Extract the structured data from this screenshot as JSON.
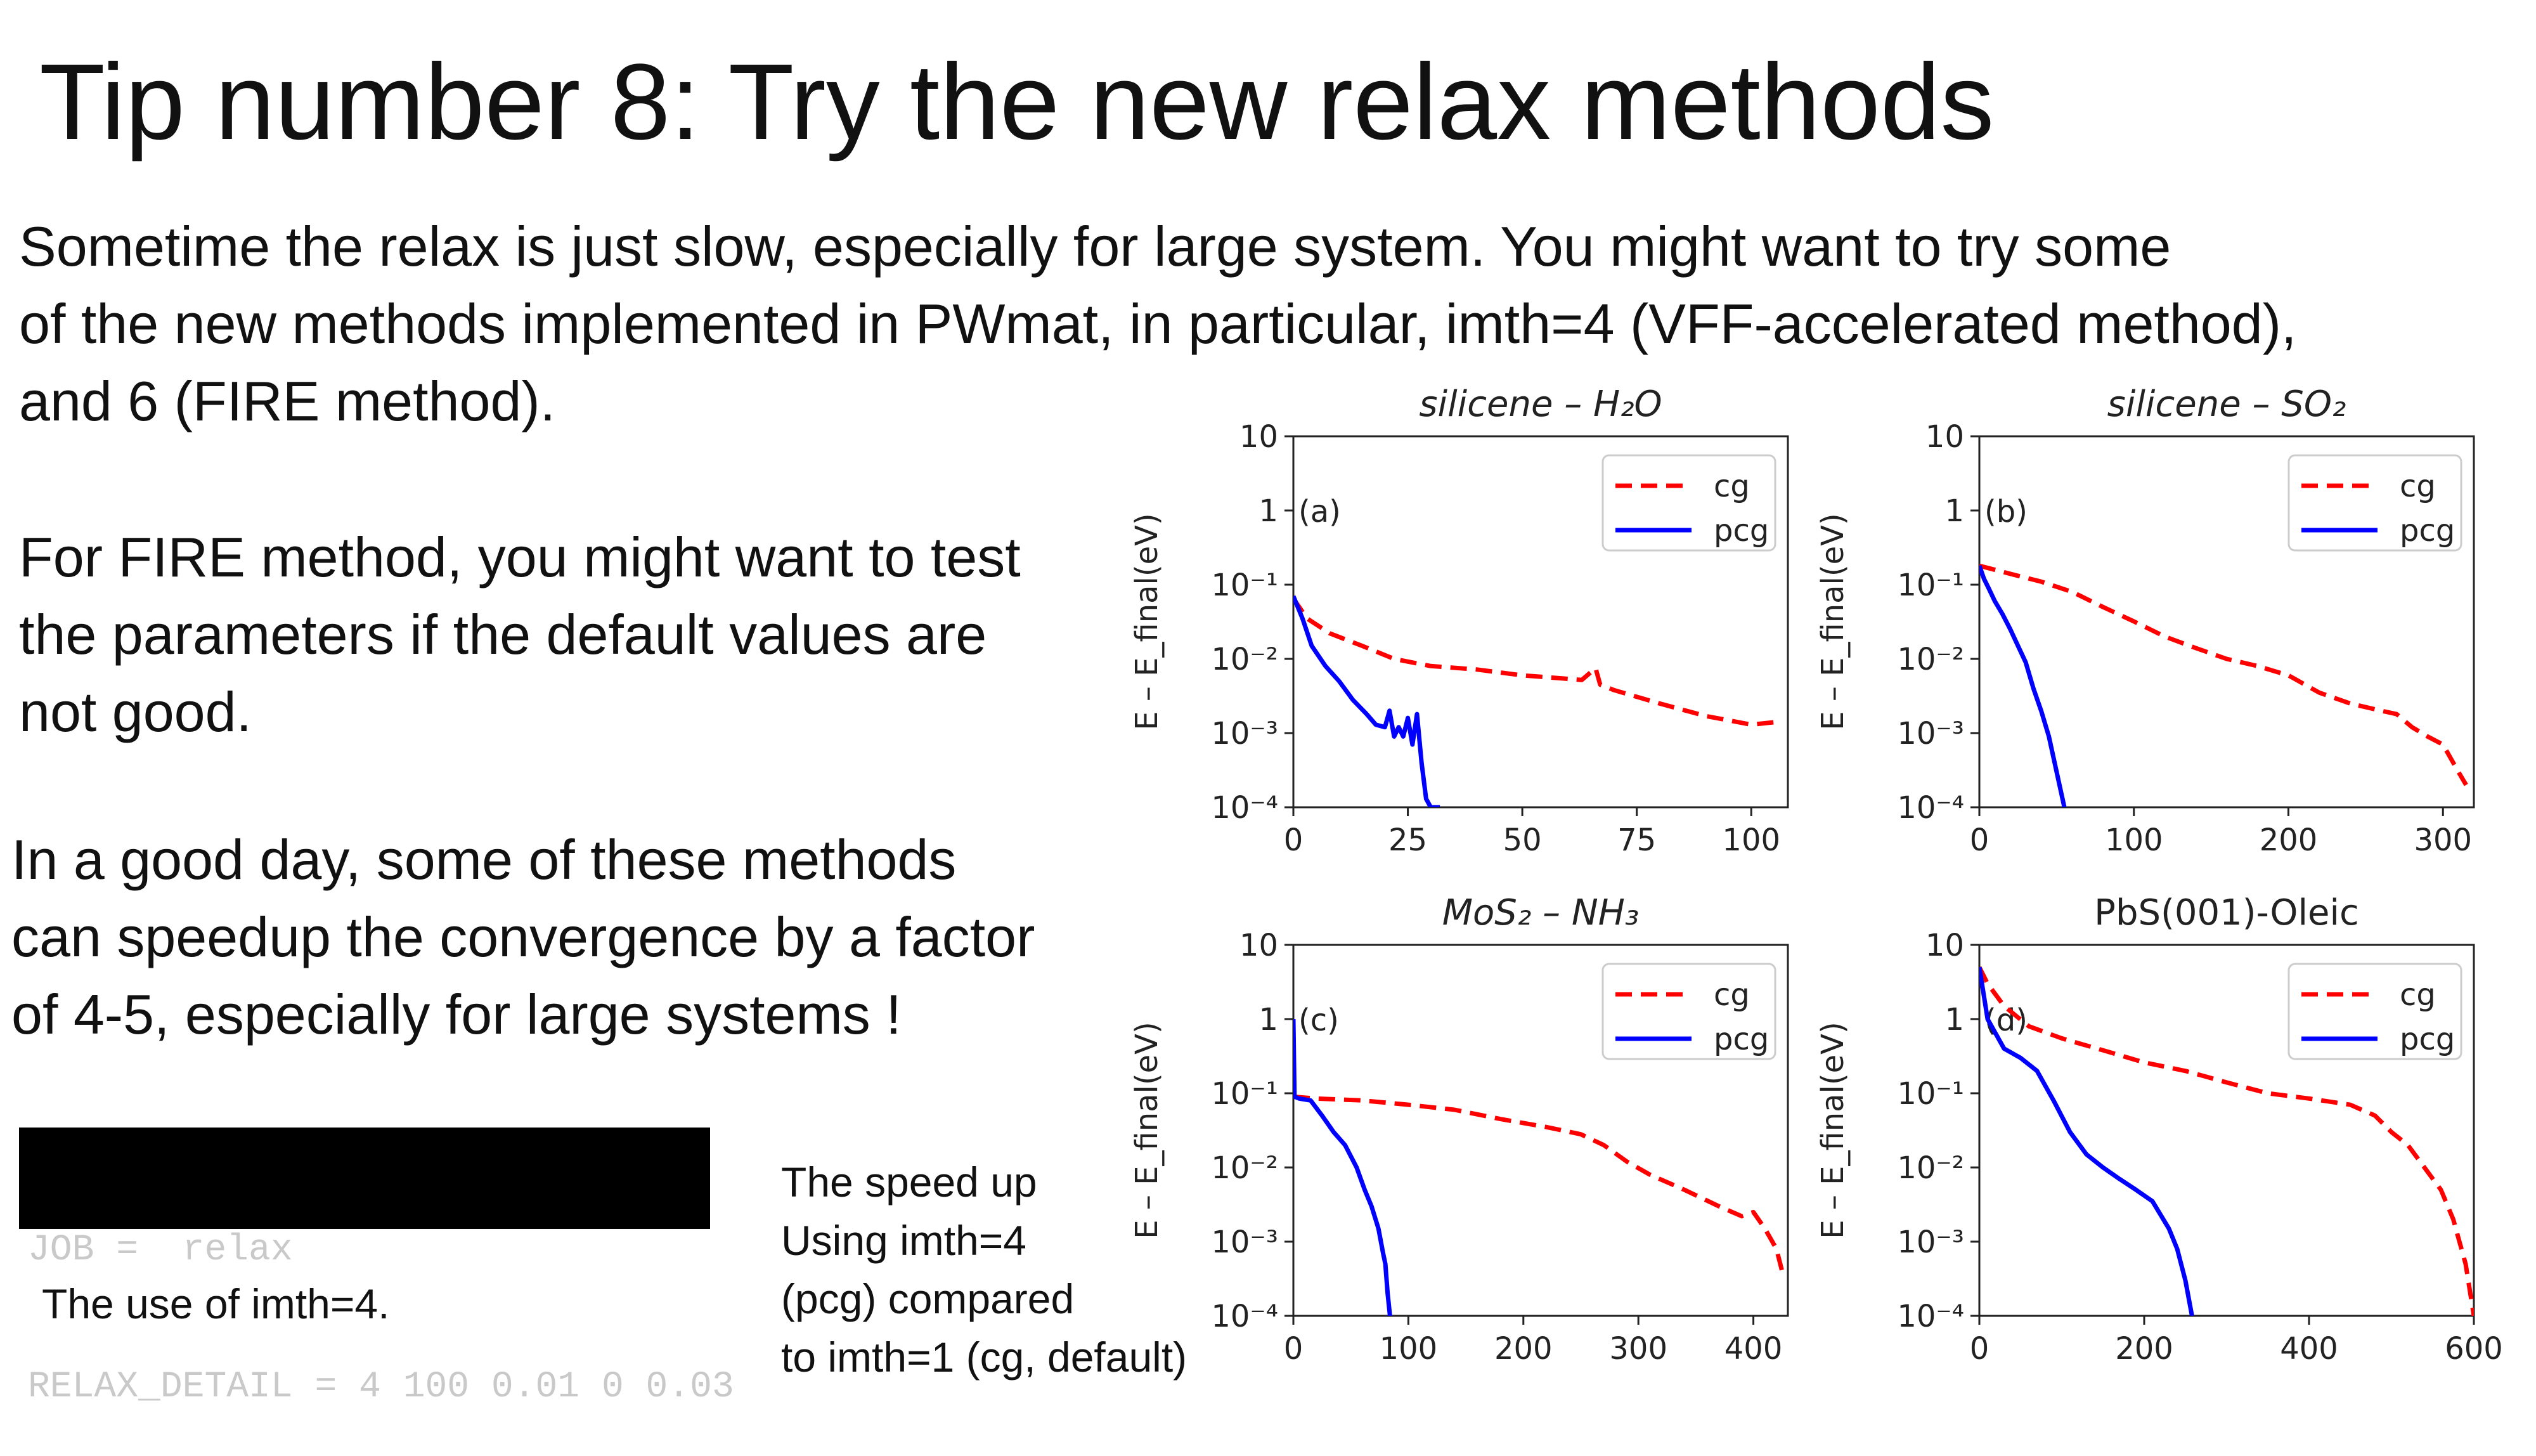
{
  "slide": {
    "title": "Tip number 8: Try the new relax methods",
    "intro": [
      "Sometime the relax is just slow, especially for large system. You might want to try some",
      "of the new methods implemented in PWmat, in particular, imth=4 (VFF-accelerated method),",
      " and 6 (FIRE method)."
    ],
    "fire_note": [
      "For FIRE method, you might want to test",
      " the parameters if the default values are",
      "not good."
    ],
    "good_day": [
      "In a good day, some of these methods",
      "can speedup the convergence by a factor",
      "of 4-5, especially for large systems !"
    ],
    "terminal_lines": [
      "JOB =  relax",
      "RELAX_DETAIL = 4 100 0.01 0 0.03"
    ],
    "imth_caption": "The use of imth=4.",
    "speedup_caption": [
      "The speed up",
      "Using imth=4",
      "(pcg) compared",
      "to imth=1 (cg, default)"
    ]
  },
  "chart_data": [
    {
      "type": "line",
      "title": "silicene – H₂O",
      "panel_label": "(a)",
      "ylabel": "E – E_final(eV)",
      "yscale": "log",
      "ylim": [
        0.0001,
        10
      ],
      "y_ticks": [
        "10",
        "1",
        "10⁻¹",
        "10⁻²",
        "10⁻³",
        "10⁻⁴"
      ],
      "xlim": [
        0,
        108
      ],
      "x_ticks": [
        0,
        25,
        50,
        75,
        100
      ],
      "legend": "top-right",
      "series": [
        {
          "name": "cg",
          "color": "#ff0000",
          "style": "dashed",
          "x": [
            0,
            3,
            8,
            15,
            22,
            30,
            40,
            50,
            58,
            63,
            66,
            67,
            70,
            80,
            90,
            100,
            105
          ],
          "y": [
            0.065,
            0.035,
            0.022,
            0.015,
            0.01,
            0.008,
            0.0072,
            0.006,
            0.0055,
            0.0052,
            0.0075,
            0.0045,
            0.0038,
            0.0025,
            0.0017,
            0.0013,
            0.0014
          ]
        },
        {
          "name": "pcg",
          "color": "#0000ff",
          "style": "solid",
          "x": [
            0,
            2,
            4,
            7,
            10,
            13,
            16,
            18,
            20,
            21,
            22,
            23,
            24,
            25,
            26,
            27,
            28,
            29,
            30,
            32
          ],
          "y": [
            0.07,
            0.035,
            0.015,
            0.008,
            0.005,
            0.0028,
            0.0018,
            0.0013,
            0.0012,
            0.002,
            0.0009,
            0.0012,
            0.0009,
            0.0016,
            0.0007,
            0.0018,
            0.0004,
            0.00013,
            0.0001,
            0.0001
          ]
        }
      ]
    },
    {
      "type": "line",
      "title": "silicene – SO₂",
      "panel_label": "(b)",
      "ylabel": "E – E_final(eV)",
      "yscale": "log",
      "ylim": [
        0.0001,
        10
      ],
      "y_ticks": [
        "10",
        "1",
        "10⁻¹",
        "10⁻²",
        "10⁻³",
        "10⁻⁴"
      ],
      "xlim": [
        0,
        320
      ],
      "x_ticks": [
        0,
        100,
        200,
        300
      ],
      "legend": "top-right",
      "series": [
        {
          "name": "cg",
          "color": "#ff0000",
          "style": "dashed",
          "x": [
            0,
            20,
            40,
            60,
            80,
            100,
            120,
            140,
            160,
            180,
            200,
            220,
            240,
            260,
            270,
            280,
            290,
            300,
            310,
            315
          ],
          "y": [
            0.18,
            0.14,
            0.11,
            0.08,
            0.05,
            0.032,
            0.02,
            0.014,
            0.01,
            0.008,
            0.006,
            0.0035,
            0.0025,
            0.002,
            0.0018,
            0.0012,
            0.0009,
            0.0007,
            0.0003,
            0.0002
          ]
        },
        {
          "name": "pcg",
          "color": "#0000ff",
          "style": "solid",
          "x": [
            0,
            3,
            6,
            10,
            15,
            20,
            25,
            30,
            35,
            40,
            45,
            50,
            55
          ],
          "y": [
            0.18,
            0.12,
            0.09,
            0.06,
            0.04,
            0.025,
            0.015,
            0.009,
            0.004,
            0.002,
            0.0009,
            0.0003,
            0.0001
          ]
        }
      ]
    },
    {
      "type": "line",
      "title": "MoS₂ – NH₃",
      "panel_label": "(c)",
      "ylabel": "E – E_final(eV)",
      "yscale": "log",
      "ylim": [
        0.0001,
        10
      ],
      "y_ticks": [
        "10",
        "1",
        "10⁻¹",
        "10⁻²",
        "10⁻³",
        "10⁻⁴"
      ],
      "xlim": [
        0,
        430
      ],
      "x_ticks": [
        0,
        100,
        200,
        300,
        400
      ],
      "legend": "top-right",
      "series": [
        {
          "name": "cg",
          "color": "#ff0000",
          "style": "dashed",
          "x": [
            0,
            20,
            60,
            100,
            140,
            180,
            220,
            250,
            270,
            290,
            310,
            340,
            370,
            390,
            400,
            410,
            420,
            425
          ],
          "y": [
            0.09,
            0.085,
            0.08,
            0.07,
            0.06,
            0.045,
            0.035,
            0.028,
            0.02,
            0.012,
            0.008,
            0.005,
            0.003,
            0.0022,
            0.0025,
            0.0015,
            0.0008,
            0.0004
          ]
        },
        {
          "name": "pcg",
          "color": "#0000ff",
          "style": "solid",
          "x": [
            0,
            1,
            5,
            15,
            25,
            35,
            45,
            55,
            62,
            68,
            74,
            78,
            80,
            82,
            84
          ],
          "y": [
            1.0,
            0.09,
            0.085,
            0.08,
            0.05,
            0.03,
            0.02,
            0.01,
            0.005,
            0.003,
            0.0015,
            0.0007,
            0.0005,
            0.0002,
            0.0001
          ]
        }
      ]
    },
    {
      "type": "line",
      "title": "PbS(001)-Oleic",
      "panel_label": "(d)",
      "ylabel": "E – E_final(eV)",
      "yscale": "log",
      "ylim": [
        0.0001,
        10
      ],
      "y_ticks": [
        "10",
        "1",
        "10⁻¹",
        "10⁻²",
        "10⁻³",
        "10⁻⁴"
      ],
      "xlim": [
        0,
        600
      ],
      "x_ticks": [
        0,
        200,
        400,
        600
      ],
      "legend": "top-right",
      "series": [
        {
          "name": "cg",
          "color": "#ff0000",
          "style": "dashed",
          "x": [
            0,
            10,
            30,
            60,
            100,
            150,
            200,
            250,
            300,
            350,
            400,
            450,
            480,
            500,
            520,
            540,
            560,
            575,
            590,
            600
          ],
          "y": [
            5,
            3,
            1.5,
            0.8,
            0.55,
            0.38,
            0.26,
            0.2,
            0.14,
            0.1,
            0.085,
            0.07,
            0.05,
            0.03,
            0.02,
            0.01,
            0.005,
            0.002,
            0.0005,
            0.0001
          ]
        },
        {
          "name": "pcg",
          "color": "#0000ff",
          "style": "solid",
          "x": [
            0,
            10,
            30,
            50,
            70,
            90,
            110,
            130,
            150,
            170,
            190,
            210,
            230,
            240,
            250,
            258
          ],
          "y": [
            5,
            1,
            0.4,
            0.3,
            0.2,
            0.08,
            0.03,
            0.015,
            0.01,
            0.007,
            0.005,
            0.0035,
            0.0015,
            0.0008,
            0.0003,
            0.0001
          ]
        }
      ]
    }
  ]
}
